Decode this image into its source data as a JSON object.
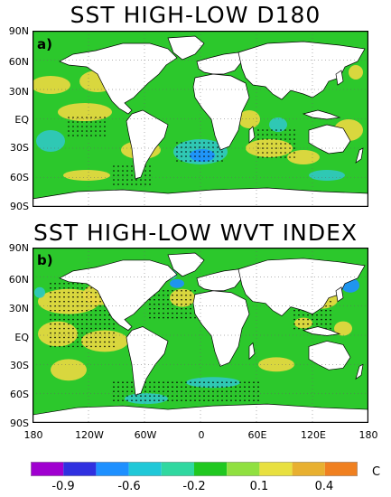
{
  "panels": [
    {
      "title": "SST HIGH-LOW D180",
      "label": "a)"
    },
    {
      "title": "SST HIGH-LOW WVT INDEX",
      "label": "b)"
    }
  ],
  "lat_labels": [
    "90N",
    "60N",
    "30N",
    "EQ",
    "30S",
    "60S",
    "90S"
  ],
  "lon_labels": [
    "180",
    "120W",
    "60W",
    "0",
    "60E",
    "120E",
    "180"
  ],
  "colorbar": {
    "unit": "C",
    "labels": [
      "-0.9",
      "-0.6",
      "-0.2",
      "0.1",
      "0.4"
    ],
    "colors": [
      "#a000d0",
      "#3030e0",
      "#1e90ff",
      "#20c8d8",
      "#30d8a0",
      "#20c820",
      "#90e040",
      "#e8e040",
      "#e8b030",
      "#f08020"
    ]
  },
  "colors": {
    "land": "#ffffff",
    "base": "#2cc82c",
    "warm": "#e8d840",
    "cool": "#30c8c0",
    "cold": "#1e90ff"
  }
}
